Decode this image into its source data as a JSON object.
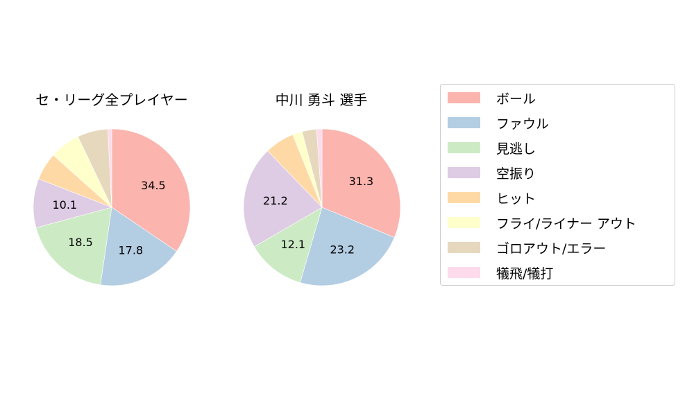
{
  "chart_data": [
    {
      "type": "pie",
      "title": "セ・リーグ全プレイヤー",
      "categories": [
        "ボール",
        "ファウル",
        "見逃し",
        "空振り",
        "ヒット",
        "フライ/ライナー アウト",
        "ゴロアウト/エラー",
        "犠飛/犠打"
      ],
      "values": [
        34.5,
        17.8,
        18.5,
        10.1,
        5.7,
        6.3,
        6.3,
        0.8
      ],
      "labels_shown": [
        "34.5",
        "17.8",
        "18.5",
        "10.1",
        "",
        "",
        "",
        ""
      ],
      "start_angle": 90,
      "direction": "clockwise"
    },
    {
      "type": "pie",
      "title": "中川 勇斗  選手",
      "categories": [
        "ボール",
        "ファウル",
        "見逃し",
        "空振り",
        "ヒット",
        "フライ/ライナー アウト",
        "ゴロアウト/エラー",
        "犠飛/犠打"
      ],
      "values": [
        31.3,
        23.2,
        12.1,
        21.2,
        6.1,
        2.0,
        3.0,
        1.1
      ],
      "labels_shown": [
        "31.3",
        "23.2",
        "12.1",
        "21.2",
        "",
        "",
        "",
        ""
      ],
      "start_angle": 90,
      "direction": "clockwise"
    }
  ],
  "titles": {
    "left": "セ・リーグ全プレイヤー",
    "right": "中川 勇斗  選手"
  },
  "legend": {
    "position": "right",
    "items": [
      {
        "label": "ボール",
        "color": "#fbb4ae"
      },
      {
        "label": "ファウル",
        "color": "#b3cde3"
      },
      {
        "label": "見逃し",
        "color": "#ccebc5"
      },
      {
        "label": "空振り",
        "color": "#decbe4"
      },
      {
        "label": "ヒット",
        "color": "#fed9a6"
      },
      {
        "label": "フライ/ライナー アウト",
        "color": "#ffffcc"
      },
      {
        "label": "ゴロアウト/エラー",
        "color": "#e5d8bd"
      },
      {
        "label": "犠飛/犠打",
        "color": "#fddaec"
      }
    ]
  }
}
